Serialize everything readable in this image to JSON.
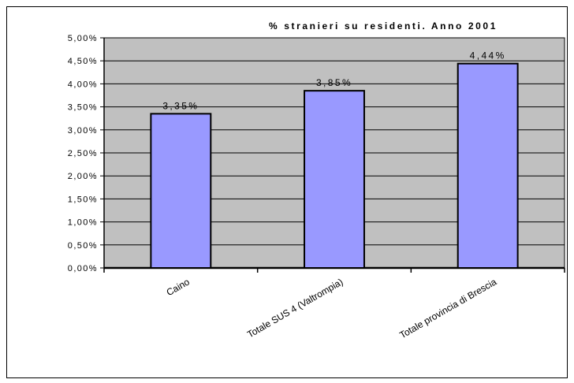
{
  "chart_data": {
    "type": "bar",
    "title": "% stranieri su residenti. Anno 2001",
    "categories": [
      "Caino",
      "Totale SUS 4 (Valtrompia)",
      "Totale provincia di Brescia"
    ],
    "values": [
      3.35,
      3.85,
      4.44
    ],
    "data_labels": [
      "3,35%",
      "3,85%",
      "4,44%"
    ],
    "y_ticks": [
      "0,00%",
      "0,50%",
      "1,00%",
      "1,50%",
      "2,00%",
      "2,50%",
      "3,00%",
      "3,50%",
      "4,00%",
      "4,50%",
      "5,00%"
    ],
    "ylim": [
      0,
      5
    ],
    "xlabel": "",
    "ylabel": "",
    "grid": true,
    "colors": {
      "bar": "#9999ff",
      "plot_background": "#c0c0c0",
      "gridline": "#000000"
    }
  }
}
